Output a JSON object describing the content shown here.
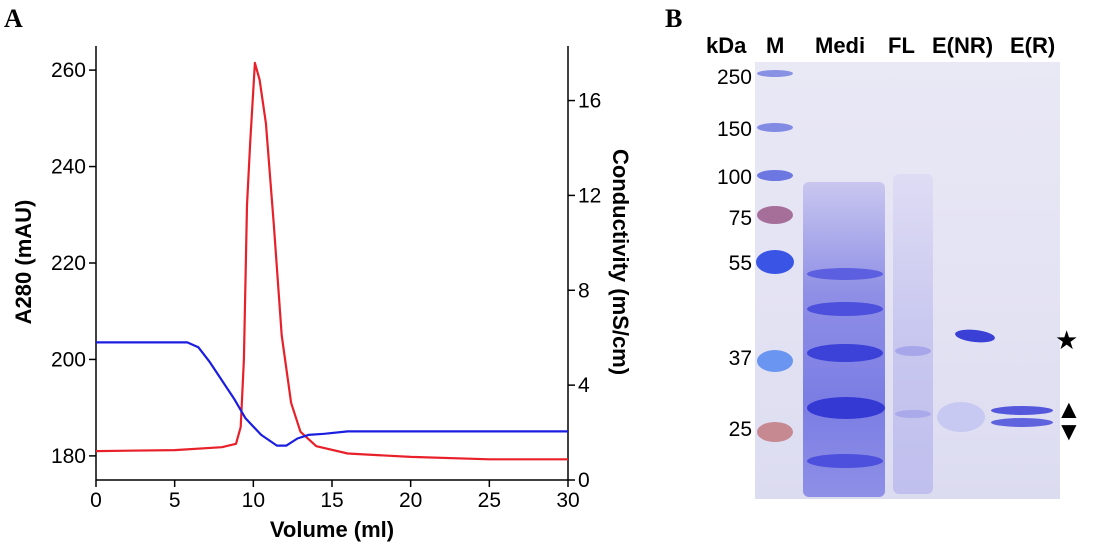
{
  "panels": {
    "a": "A",
    "b": "B"
  },
  "chart_data": {
    "type": "line",
    "xlabel": "Volume (ml)",
    "ylabel": "A280 (mAU)",
    "y2label": "Conductivity (mS/cm)",
    "xlim": [
      0,
      30
    ],
    "ylim": [
      175,
      265
    ],
    "y2lim": [
      0,
      18.3
    ],
    "x_ticks": [
      0,
      5,
      10,
      15,
      20,
      25,
      30
    ],
    "y_ticks": [
      180,
      200,
      220,
      240,
      260
    ],
    "y2_ticks": [
      0,
      4,
      8,
      12,
      16
    ],
    "grid": false,
    "series": [
      {
        "axis": "left",
        "color": "#e8202a",
        "x": [
          0,
          5,
          8,
          8.9,
          9.2,
          9.4,
          9.6,
          9.8,
          10.1,
          10.4,
          10.8,
          11.3,
          11.8,
          12.4,
          13.0,
          14.0,
          16,
          20,
          25,
          30
        ],
        "y": [
          181,
          181.2,
          181.8,
          182.5,
          186,
          200,
          232,
          245,
          261.5,
          258,
          249,
          228,
          205,
          191,
          185,
          182,
          180.5,
          179.8,
          179.3,
          179.3
        ]
      },
      {
        "axis": "right",
        "color": "#1b1ee0",
        "x": [
          0,
          4,
          5.8,
          6.5,
          7.2,
          8,
          8.8,
          9.5,
          10.5,
          11.5,
          12.1,
          12.8,
          13.5,
          14.5,
          16,
          20,
          30
        ],
        "y": [
          5.8,
          5.8,
          5.8,
          5.6,
          5.0,
          4.2,
          3.4,
          2.6,
          1.9,
          1.45,
          1.45,
          1.75,
          1.9,
          1.95,
          2.05,
          2.05,
          2.05
        ]
      }
    ]
  },
  "gel": {
    "unit_label": "kDa",
    "lanes": [
      "M",
      "Medi",
      "FL",
      "E(NR)",
      "E(R)"
    ],
    "mw_markers": [
      "250",
      "150",
      "100",
      "75",
      "55",
      "37",
      "25"
    ],
    "symbols": {
      "star": "★",
      "up": "▲",
      "down": "▼"
    }
  }
}
